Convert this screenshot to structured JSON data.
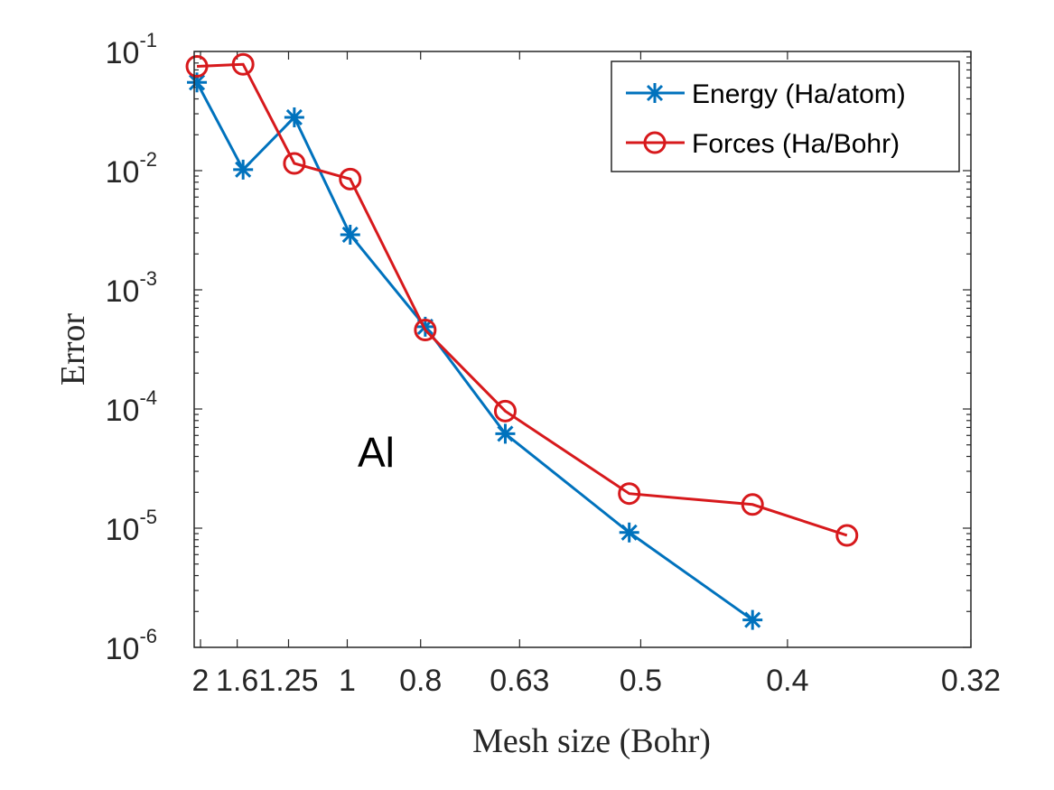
{
  "chart_data": {
    "type": "line",
    "xlabel": "Mesh size (Bohr)",
    "ylabel": "Error",
    "x_scale": "reciprocal",
    "y_scale": "log",
    "xlim": [
      2.09,
      0.32
    ],
    "ylim": [
      1e-06,
      0.1
    ],
    "x_ticks": [
      {
        "label": "2",
        "value": 2
      },
      {
        "label": "1.6",
        "value": 1.6
      },
      {
        "label": "1.25",
        "value": 1.25
      },
      {
        "label": "1",
        "value": 1
      },
      {
        "label": "0.8",
        "value": 0.8
      },
      {
        "label": "0.63",
        "value": 0.63
      },
      {
        "label": "0.5",
        "value": 0.5
      },
      {
        "label": "0.4",
        "value": 0.4
      },
      {
        "label": "0.32",
        "value": 0.32
      }
    ],
    "y_ticks": [
      {
        "base": "10",
        "exp": "-1",
        "value": 0.1
      },
      {
        "base": "10",
        "exp": "-2",
        "value": 0.01
      },
      {
        "base": "10",
        "exp": "-3",
        "value": 0.001
      },
      {
        "base": "10",
        "exp": "-4",
        "value": 0.0001
      },
      {
        "base": "10",
        "exp": "-5",
        "value": 1e-05
      },
      {
        "base": "10",
        "exp": "-6",
        "value": 1e-06
      }
    ],
    "grid": false,
    "legend_position": "top-right",
    "annotation": "Al",
    "series": [
      {
        "name": "Energy (Ha/atom)",
        "color": "#0072BD",
        "marker": "asterisk",
        "x": [
          2.05,
          1.55,
          1.22,
          0.99,
          0.79,
          0.65,
          0.51,
          0.42
        ],
        "y": [
          0.055,
          0.0102,
          0.028,
          0.0029,
          0.00049,
          6.2e-05,
          9.2e-06,
          1.7e-06
        ]
      },
      {
        "name": "Forces (Ha/Bohr)",
        "color": "#D7191C",
        "marker": "circle",
        "x": [
          2.05,
          1.55,
          1.22,
          0.99,
          0.79,
          0.65,
          0.51,
          0.42,
          0.37
        ],
        "y": [
          0.075,
          0.078,
          0.0115,
          0.0085,
          0.00046,
          9.6e-05,
          1.95e-05,
          1.58e-05,
          8.7e-06
        ]
      }
    ]
  }
}
